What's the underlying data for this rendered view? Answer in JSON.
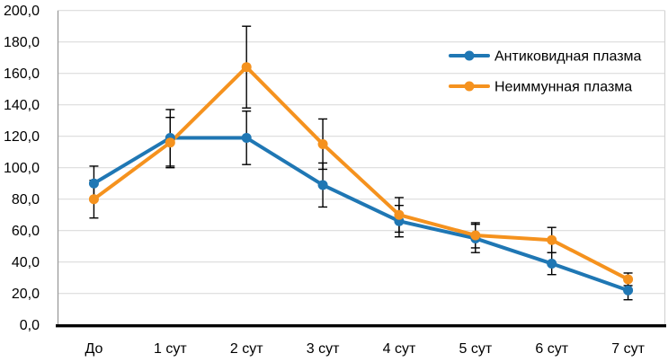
{
  "figure": {
    "background": "#FFFFFF"
  },
  "chart_data": {
    "type": "line",
    "title": "",
    "xlabel": "",
    "ylabel": "",
    "categories": [
      "До",
      "1 сут",
      "2 сут",
      "3 сут",
      "4 сут",
      "5 сут",
      "6 сут",
      "7 сут"
    ],
    "series": [
      {
        "name": "Антиковидная плазма",
        "color": "#1F77B4",
        "marker": "circle",
        "values": [
          90,
          119,
          119,
          89,
          66,
          55,
          39,
          22
        ],
        "errors": [
          11,
          18,
          17,
          14,
          10,
          9,
          7,
          6
        ]
      },
      {
        "name": "Неиммунная плазма",
        "color": "#F5921E",
        "marker": "circle",
        "values": [
          80,
          116,
          164,
          115,
          70,
          57,
          54,
          29
        ],
        "errors": [
          12,
          16,
          26,
          16,
          11,
          8,
          8,
          4
        ]
      }
    ],
    "ylim": [
      0,
      200
    ],
    "ytick_step": 20,
    "ytick_labels": [
      "0,0",
      "20,0",
      "40,0",
      "60,0",
      "80,0",
      "100,0",
      "120,0",
      "140,0",
      "160,0",
      "180,0",
      "200,0"
    ],
    "grid": true,
    "legend_position": "top-right",
    "error_bar_color": "#000000",
    "colors": {
      "gridline": "#DCDCDC",
      "left_axis_line": "#9A9A9A",
      "right_border_line": "#D4D4D4",
      "bottom_axis_line": "#000000",
      "tick_label": "#000000"
    }
  }
}
